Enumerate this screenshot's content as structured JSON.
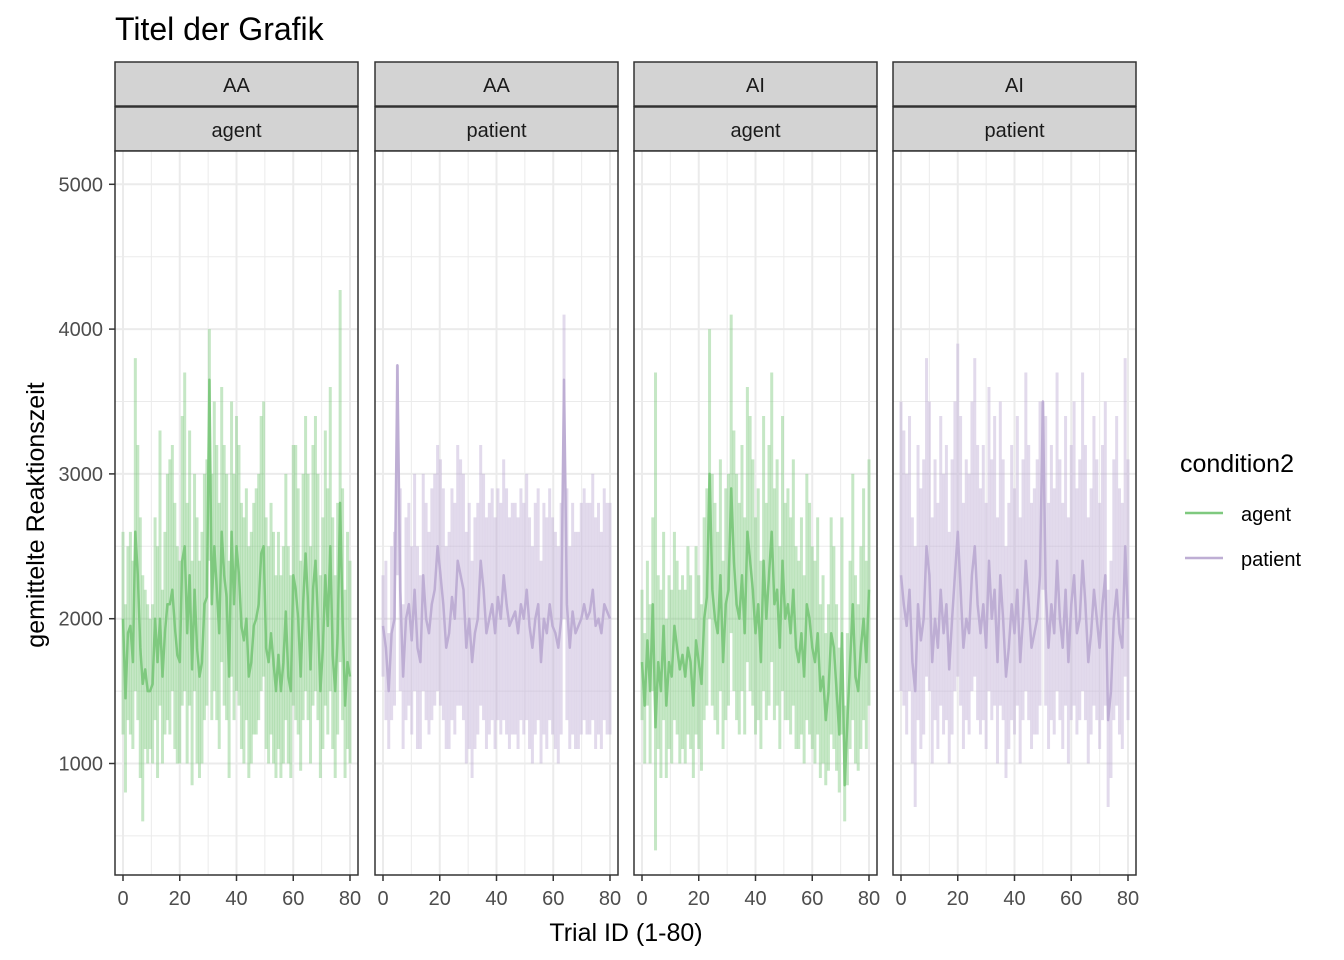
{
  "chart_data": {
    "type": "line",
    "title": "Titel der Grafik",
    "xlabel": "Trial ID (1-80)",
    "ylabel": "gemittelte Reaktionszeit",
    "xlim": [
      0,
      80
    ],
    "ylim": [
      230,
      5230
    ],
    "x_ticks": [
      "0",
      "20",
      "40",
      "60",
      "80"
    ],
    "y_ticks": [
      "1000",
      "2000",
      "3000",
      "4000",
      "5000"
    ],
    "grid": true,
    "legend": {
      "title": "condition2",
      "position": "right",
      "entries": [
        {
          "label": "agent",
          "color": "#7fc97f"
        },
        {
          "label": "patient",
          "color": "#beaed4"
        }
      ]
    },
    "series_colors": {
      "agent": "#7fc97f",
      "patient": "#beaed4"
    },
    "ribbon_note": "shaded vertical range bars behind each line",
    "panels": [
      {
        "strip_top": "AA",
        "strip_bottom": "agent",
        "series": "agent",
        "mean": [
          2000,
          1450,
          1900,
          1950,
          1700,
          2600,
          2300,
          1800,
          1550,
          1650,
          1500,
          1500,
          1550,
          2000,
          1700,
          2000,
          1600,
          1900,
          2100,
          2100,
          2200,
          1950,
          1750,
          1700,
          2400,
          2500,
          1900,
          2300,
          1650,
          2200,
          1800,
          1600,
          1700,
          2100,
          2150,
          3650,
          2100,
          2500,
          2200,
          1900,
          2600,
          2300,
          2150,
          1600,
          2600,
          2100,
          2500,
          2300,
          1950,
          1850,
          2000,
          1600,
          1700,
          1950,
          2000,
          2100,
          2450,
          2500,
          1800,
          1700,
          1900,
          1700,
          1500,
          1750,
          1500,
          1700,
          2050,
          1600,
          1500,
          2300,
          2200,
          2000,
          1600,
          2100,
          2450,
          2100,
          1650,
          2200,
          2400,
          2000,
          1500,
          1800,
          2300,
          1950,
          2500,
          1750,
          1500,
          1900,
          2800,
          2000,
          1400,
          1700,
          1600
        ],
        "low": [
          1200,
          800,
          1300,
          1200,
          1100,
          1500,
          1300,
          900,
          600,
          1100,
          1000,
          1100,
          1000,
          1300,
          900,
          1400,
          1000,
          1200,
          1300,
          1200,
          1500,
          1100,
          1000,
          1000,
          1400,
          1500,
          1000,
          1400,
          850,
          1500,
          1000,
          900,
          1000,
          1300,
          1400,
          2400,
          1300,
          1500,
          1300,
          1100,
          1700,
          1400,
          1300,
          900,
          1600,
          1300,
          1500,
          1400,
          1100,
          1000,
          1300,
          900,
          1000,
          1200,
          1200,
          1300,
          1500,
          1600,
          1100,
          1000,
          1200,
          1000,
          900,
          1100,
          900,
          1000,
          1300,
          1000,
          900,
          1400,
          1300,
          1200,
          950,
          1300,
          1500,
          1300,
          1000,
          1400,
          1500,
          1300,
          900,
          1100,
          1400,
          1200,
          1500,
          1100,
          900,
          1200,
          1700,
          1300,
          900,
          1100,
          1000
        ],
        "high": [
          2600,
          2100,
          2500,
          2600,
          2400,
          3800,
          3200,
          2700,
          2300,
          2200,
          2100,
          2000,
          2100,
          2700,
          2500,
          3300,
          2200,
          2600,
          3000,
          3100,
          3200,
          2800,
          2500,
          2400,
          3400,
          3700,
          2800,
          3300,
          2400,
          3000,
          2700,
          2400,
          2600,
          3000,
          3100,
          4000,
          3000,
          3500,
          3200,
          2800,
          3600,
          3200,
          3000,
          2400,
          3500,
          3000,
          3400,
          3200,
          2800,
          2700,
          2900,
          2500,
          2600,
          2800,
          2900,
          3000,
          3400,
          3500,
          2700,
          2500,
          2800,
          2600,
          2300,
          2600,
          2300,
          2500,
          3000,
          2500,
          2300,
          3200,
          3200,
          2900,
          2400,
          3000,
          3400,
          3000,
          2500,
          3200,
          3400,
          3000,
          2300,
          2700,
          3300,
          2900,
          3600,
          2700,
          2300,
          2800,
          4270,
          2900,
          2200,
          2600,
          2400
        ]
      },
      {
        "strip_top": "AA",
        "strip_bottom": "patient",
        "series": "patient",
        "mean": [
          1950,
          1800,
          1500,
          1900,
          2000,
          3750,
          2200,
          1600,
          2000,
          2100,
          1850,
          2200,
          1800,
          1700,
          2300,
          2000,
          1900,
          2100,
          2200,
          2500,
          2300,
          2100,
          1800,
          1900,
          2150,
          2000,
          2400,
          2300,
          2200,
          1800,
          2000,
          1700,
          1900,
          2000,
          2400,
          2200,
          1900,
          2000,
          2100,
          1900,
          2150,
          2000,
          2300,
          2100,
          1950,
          2000,
          2050,
          1900,
          2100,
          2000,
          2200,
          1950,
          1800,
          2000,
          2100,
          1700,
          2000,
          1900,
          2100,
          1950,
          1900,
          1800,
          2000,
          3650,
          2100,
          1800,
          2050,
          1900,
          1950,
          2000,
          2100,
          2000,
          2050,
          2200,
          1950,
          2000,
          1900,
          2100,
          2050,
          2000
        ],
        "low": [
          1600,
          1300,
          1100,
          1300,
          1400,
          2300,
          1500,
          1100,
          1300,
          1400,
          1200,
          1500,
          1100,
          1100,
          1500,
          1300,
          1200,
          1300,
          1400,
          1500,
          1400,
          1300,
          1100,
          1100,
          1300,
          1200,
          1400,
          1400,
          1300,
          1000,
          1100,
          900,
          1100,
          1200,
          1400,
          1300,
          1100,
          1200,
          1300,
          1100,
          1300,
          1200,
          1300,
          1200,
          1100,
          1200,
          1200,
          1100,
          1300,
          1200,
          1300,
          1100,
          1000,
          1200,
          1300,
          1000,
          1200,
          1100,
          1300,
          1200,
          1100,
          1000,
          1200,
          2000,
          1300,
          1100,
          1200,
          1100,
          1100,
          1200,
          1300,
          1200,
          1200,
          1300,
          1100,
          1200,
          1100,
          1300,
          1200,
          1200
        ],
        "high": [
          2300,
          2400,
          1900,
          2500,
          2600,
          3750,
          2900,
          2100,
          2700,
          2800,
          2500,
          3000,
          2500,
          2300,
          3000,
          2800,
          2600,
          2900,
          3000,
          3200,
          3100,
          2900,
          2500,
          2600,
          2900,
          2800,
          3200,
          3100,
          3000,
          2600,
          2800,
          2400,
          2700,
          2800,
          3200,
          3000,
          2700,
          2800,
          2900,
          2700,
          2900,
          2800,
          3100,
          2900,
          2700,
          2800,
          2800,
          2700,
          2900,
          2800,
          3000,
          2700,
          2500,
          2800,
          2900,
          2400,
          2800,
          2700,
          2900,
          2700,
          2600,
          2500,
          2800,
          4100,
          2900,
          2500,
          2800,
          2600,
          2600,
          2800,
          2900,
          2800,
          2800,
          3000,
          2700,
          2800,
          2600,
          2900,
          2800,
          2800
        ]
      },
      {
        "strip_top": "AI",
        "strip_bottom": "agent",
        "series": "agent",
        "mean": [
          1700,
          1400,
          1850,
          1500,
          2100,
          1250,
          1700,
          1500,
          1950,
          1400,
          1700,
          1600,
          1950,
          1800,
          1650,
          1750,
          1600,
          1800,
          1700,
          1400,
          1850,
          1700,
          1550,
          2000,
          2150,
          3000,
          2200,
          2000,
          1900,
          2300,
          1700,
          2100,
          2200,
          2900,
          2400,
          2100,
          2000,
          2300,
          1900,
          2600,
          2400,
          2200,
          1900,
          2100,
          1700,
          2400,
          2000,
          2300,
          2600,
          2100,
          2200,
          1800,
          2400,
          2000,
          2100,
          1900,
          2200,
          1800,
          1700,
          1900,
          1600,
          2100,
          2000,
          1800,
          1700,
          1900,
          1500,
          1600,
          1300,
          1500,
          1900,
          1800,
          1500,
          1200,
          1900,
          850,
          1300,
          1700,
          2100,
          1600,
          1500,
          1800,
          2000,
          1700,
          2200
        ],
        "low": [
          1300,
          1000,
          1400,
          1000,
          1500,
          400,
          1100,
          900,
          1300,
          900,
          1100,
          1000,
          1300,
          1200,
          1000,
          1100,
          1000,
          1200,
          1100,
          900,
          1200,
          1100,
          950,
          1300,
          1400,
          2000,
          1400,
          1300,
          1200,
          1500,
          1100,
          1300,
          1400,
          1900,
          1500,
          1300,
          1200,
          1500,
          1200,
          1700,
          1500,
          1400,
          1200,
          1300,
          1100,
          1500,
          1300,
          1400,
          1700,
          1300,
          1400,
          1100,
          1500,
          1300,
          1300,
          1200,
          1400,
          1100,
          1100,
          1200,
          1000,
          1300,
          1200,
          1100,
          1000,
          1200,
          900,
          1000,
          850,
          950,
          1200,
          1100,
          950,
          800,
          1200,
          600,
          850,
          1100,
          1300,
          1000,
          950,
          1100,
          1300,
          1100,
          1400
        ],
        "high": [
          2200,
          1900,
          2400,
          2100,
          2700,
          3700,
          2300,
          2200,
          2600,
          2000,
          2300,
          2200,
          2600,
          2400,
          2200,
          2300,
          2200,
          2500,
          2300,
          2000,
          2500,
          2300,
          2100,
          2700,
          2900,
          4000,
          3000,
          2800,
          2600,
          3100,
          2400,
          2900,
          3000,
          4100,
          3300,
          3000,
          2800,
          3200,
          2700,
          3600,
          3400,
          3100,
          2700,
          2900,
          2400,
          3400,
          2800,
          3200,
          3700,
          2900,
          3100,
          2500,
          3400,
          2800,
          2900,
          2700,
          3100,
          2500,
          2400,
          2700,
          2300,
          3000,
          2800,
          2500,
          2400,
          2700,
          2100,
          2300,
          1900,
          2100,
          2700,
          2500,
          2100,
          1800,
          2700,
          1400,
          1900,
          2400,
          3000,
          2300,
          2100,
          2500,
          2900,
          2400,
          3100
        ]
      },
      {
        "strip_top": "AI",
        "strip_bottom": "patient",
        "series": "patient",
        "mean": [
          2300,
          2100,
          1950,
          2200,
          1700,
          1500,
          2100,
          1850,
          2000,
          2500,
          2300,
          1700,
          2000,
          1800,
          2200,
          1900,
          2100,
          1650,
          2000,
          2300,
          2600,
          2200,
          1800,
          2000,
          1900,
          2300,
          2500,
          2100,
          1900,
          2100,
          1800,
          2400,
          2000,
          2200,
          1700,
          2300,
          2000,
          1600,
          1800,
          2100,
          1900,
          2200,
          1700,
          2000,
          2400,
          2100,
          1800,
          1900,
          2000,
          2300,
          3500,
          2200,
          1800,
          2100,
          1900,
          2400,
          2000,
          1800,
          2200,
          1700,
          2100,
          2300,
          1900,
          2000,
          2400,
          2100,
          1700,
          1900,
          2200,
          2000,
          1800,
          2100,
          2300,
          1300,
          1500,
          2000,
          2200,
          1900,
          1800,
          2500,
          2000
        ],
        "low": [
          1500,
          1400,
          1200,
          1500,
          1000,
          700,
          1300,
          1100,
          1200,
          1600,
          1500,
          1000,
          1300,
          1100,
          1400,
          1200,
          1300,
          1000,
          1200,
          1500,
          1600,
          1400,
          1100,
          1300,
          1200,
          1500,
          1600,
          1300,
          1200,
          1300,
          1100,
          1500,
          1300,
          1400,
          1000,
          1400,
          1300,
          900,
          1100,
          1300,
          1200,
          1400,
          1000,
          1300,
          1500,
          1300,
          1100,
          1200,
          1200,
          1400,
          2200,
          1400,
          1100,
          1300,
          1200,
          1500,
          1300,
          1100,
          1400,
          1000,
          1300,
          1400,
          1200,
          1300,
          1500,
          1300,
          1000,
          1200,
          1400,
          1300,
          1100,
          1300,
          1400,
          700,
          900,
          1300,
          1400,
          1200,
          1100,
          1600,
          1300
        ],
        "high": [
          3500,
          3300,
          3000,
          3400,
          2700,
          2500,
          3200,
          2900,
          3100,
          3800,
          3500,
          2700,
          3100,
          2800,
          3400,
          3000,
          3200,
          2600,
          3100,
          3500,
          3900,
          3400,
          2800,
          3100,
          3000,
          3500,
          3800,
          3200,
          2900,
          3200,
          2800,
          3600,
          3100,
          3400,
          2700,
          3500,
          3100,
          2500,
          2800,
          3200,
          2900,
          3400,
          2700,
          3100,
          3700,
          3200,
          2800,
          2900,
          3100,
          3500,
          3500,
          3400,
          2800,
          3200,
          2900,
          3700,
          3100,
          2800,
          3400,
          2700,
          3200,
          3500,
          2900,
          3100,
          3700,
          3200,
          2700,
          2900,
          3400,
          3100,
          2800,
          3200,
          3500,
          2200,
          2400,
          3100,
          3400,
          2900,
          2800,
          3800,
          3100
        ]
      }
    ]
  }
}
